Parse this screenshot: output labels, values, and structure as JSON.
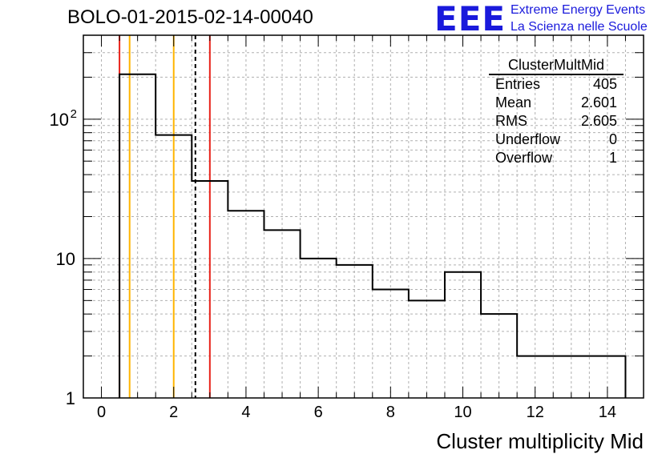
{
  "chart_data": {
    "type": "histogram",
    "title": "BOLO-01-2015-02-14-00040",
    "xlabel": "Cluster multiplicity Mid",
    "ylabel": "",
    "xlim": [
      -0.5,
      15.0
    ],
    "ylim": [
      1,
      400
    ],
    "yscale": "log",
    "grid": true,
    "x_ticks": [
      "0",
      "2",
      "4",
      "6",
      "8",
      "10",
      "12",
      "14"
    ],
    "y_ticks": [
      "1",
      "10",
      "10^2"
    ],
    "bins": [
      {
        "x0": 0.5,
        "x1": 1.5,
        "y": 210
      },
      {
        "x0": 1.5,
        "x1": 2.5,
        "y": 77
      },
      {
        "x0": 2.5,
        "x1": 3.5,
        "y": 36
      },
      {
        "x0": 3.5,
        "x1": 4.5,
        "y": 22
      },
      {
        "x0": 4.5,
        "x1": 5.5,
        "y": 16
      },
      {
        "x0": 5.5,
        "x1": 6.5,
        "y": 10
      },
      {
        "x0": 6.5,
        "x1": 7.5,
        "y": 9
      },
      {
        "x0": 7.5,
        "x1": 8.5,
        "y": 6
      },
      {
        "x0": 8.5,
        "x1": 9.5,
        "y": 5
      },
      {
        "x0": 9.5,
        "x1": 10.5,
        "y": 8
      },
      {
        "x0": 10.5,
        "x1": 11.5,
        "y": 4
      },
      {
        "x0": 11.5,
        "x1": 14.5,
        "y": 2
      }
    ],
    "vertical_lines": [
      {
        "x": 0.5,
        "color": "#e8231a",
        "style": "solid"
      },
      {
        "x": 0.78,
        "color": "#ffb400",
        "style": "solid"
      },
      {
        "x": 2.0,
        "color": "#ffb400",
        "style": "solid"
      },
      {
        "x": 2.6,
        "color": "#000000",
        "style": "dashed"
      },
      {
        "x": 3.0,
        "color": "#e8231a",
        "style": "solid"
      }
    ],
    "stats": {
      "name": "ClusterMultMid",
      "rows": [
        {
          "label": "Entries",
          "value": "405"
        },
        {
          "label": "Mean",
          "value": "2.601"
        },
        {
          "label": "RMS",
          "value": "2.605"
        },
        {
          "label": "Underflow",
          "value": "0"
        },
        {
          "label": "Overflow",
          "value": "1"
        }
      ]
    }
  },
  "logo": {
    "mark": "EEE",
    "line1": "Extreme Energy Events",
    "line2": "La Scienza nelle Scuole"
  }
}
